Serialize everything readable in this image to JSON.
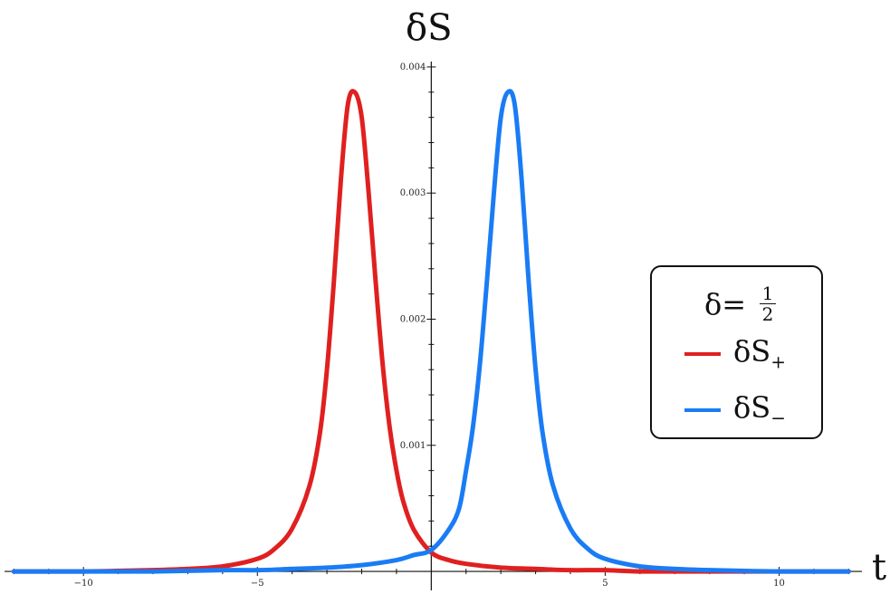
{
  "chart_data": {
    "type": "line",
    "ylabel": "δS",
    "xlabel": "t",
    "xlim": [
      -12.4,
      12.2
    ],
    "ylim": [
      -0.0001,
      0.0041
    ],
    "x_ticks": [
      -10,
      -5,
      5,
      10
    ],
    "x_tick_labels": [
      "−10",
      "−5",
      "5",
      "10"
    ],
    "y_ticks": [
      0.001,
      0.002,
      0.003,
      0.004
    ],
    "y_tick_labels": [
      "0.001",
      "0.002",
      "0.003",
      "0.004"
    ],
    "grid": false,
    "legend": {
      "position": "right",
      "title_prefix": "δ=",
      "title_num": "1",
      "title_den": "2"
    },
    "series": [
      {
        "name": "δS",
        "subscript": "+",
        "color": "#e02020",
        "x": [
          -12,
          -10,
          -8,
          -7,
          -6,
          -5,
          -4.5,
          -4,
          -3.5,
          -3.2,
          -3,
          -2.8,
          -2.6,
          -2.4,
          -2.2,
          -2.0,
          -1.8,
          -1.6,
          -1.4,
          -1.2,
          -1.0,
          -0.8,
          -0.5,
          0,
          0.5,
          1,
          2,
          3,
          4,
          5,
          6,
          8,
          10,
          12
        ],
        "y": [
          0.0,
          0.0,
          1e-05,
          2e-05,
          4e-05,
          0.0001,
          0.00018,
          0.00034,
          0.00068,
          0.0011,
          0.0016,
          0.0023,
          0.0031,
          0.0037,
          0.0038,
          0.0036,
          0.003,
          0.0023,
          0.00165,
          0.00115,
          0.0008,
          0.00055,
          0.00033,
          0.00015,
          9e-05,
          6e-05,
          3e-05,
          2e-05,
          1e-05,
          1e-05,
          0.0,
          0.0,
          0.0,
          0.0
        ]
      },
      {
        "name": "δS",
        "subscript": "−",
        "color": "#1a7cf5",
        "x": [
          -12,
          -10,
          -8,
          -6,
          -5,
          -4,
          -3,
          -2,
          -1,
          -0.5,
          0,
          0.5,
          0.8,
          1.0,
          1.2,
          1.4,
          1.6,
          1.8,
          2.0,
          2.2,
          2.4,
          2.6,
          2.8,
          3.0,
          3.2,
          3.5,
          4,
          4.5,
          5,
          6,
          7,
          8,
          10,
          12
        ],
        "y": [
          0.0,
          0.0,
          0.0,
          1e-05,
          1e-05,
          2e-05,
          3e-05,
          5e-05,
          9e-05,
          0.00013,
          0.00017,
          0.00033,
          0.0005,
          0.0008,
          0.00115,
          0.00165,
          0.0023,
          0.003,
          0.0036,
          0.0038,
          0.0037,
          0.0031,
          0.0023,
          0.0016,
          0.0011,
          0.00068,
          0.00034,
          0.00018,
          0.0001,
          4e-05,
          2e-05,
          1e-05,
          0.0,
          0.0
        ]
      }
    ]
  }
}
